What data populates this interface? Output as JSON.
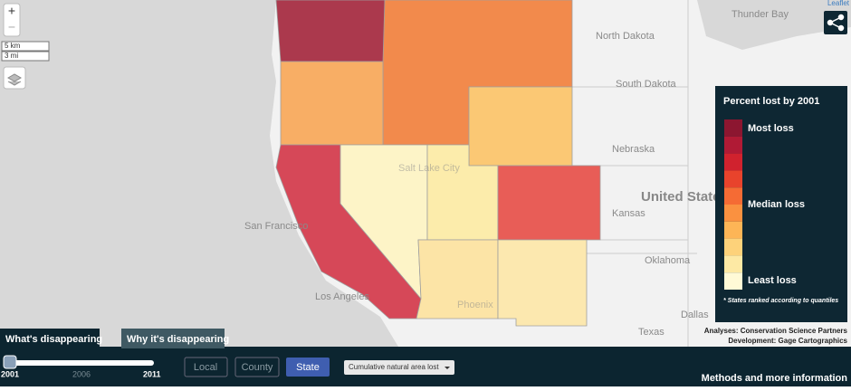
{
  "zoom": {
    "in": "+",
    "out": "−"
  },
  "scale": {
    "metric": "5 km",
    "imperial": "3 mi"
  },
  "attribution": "Leaflet",
  "map_labels": [
    "Thunder Bay",
    "North Dakota",
    "South Dakota",
    "Nebraska",
    "United States",
    "Kansas",
    "Oklahoma",
    "Dallas",
    "Texas",
    "San Francisco",
    "Los Angeles",
    "Salt Lake City",
    "Phoenix"
  ],
  "legend": {
    "title": "Percent lost by 2001",
    "most": "Most loss",
    "median": "Median loss",
    "least": "Least loss",
    "note": "* States ranked according to quantiles",
    "colors": [
      "#8c1630",
      "#b01a35",
      "#d0222e",
      "#e8432c",
      "#f56b34",
      "#fa9140",
      "#fdb556",
      "#fdd27a",
      "#fde9a4",
      "#fffad6"
    ]
  },
  "credits": [
    "Analyses: Conservation Science Partners",
    "Development: Gage Cartographics"
  ],
  "tabs": [
    "What's disappearing",
    "Why it's disappearing"
  ],
  "slider": [
    "2001",
    "2006",
    "2011"
  ],
  "levels": [
    "Local",
    "County",
    "State"
  ],
  "dropdown": "Cumulative natural area lost",
  "methods": "Methods and more information"
}
